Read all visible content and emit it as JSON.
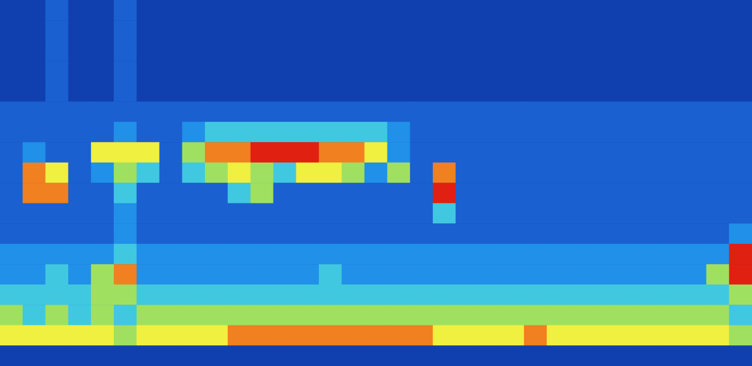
{
  "chart_data": {
    "type": "heatmap",
    "tick_labels": false,
    "grid": false,
    "color_range": [
      0,
      10
    ],
    "color_scale": [
      "#061f70",
      "#0a2a8a",
      "#1040b0",
      "#1a60d0",
      "#2090e8",
      "#40c8e0",
      "#a0e060",
      "#f0f040",
      "#f08020",
      "#e02010",
      "#c8b0b0"
    ],
    "cells": [
      [
        2,
        2,
        3,
        2,
        2,
        3,
        2,
        2,
        2,
        2,
        2,
        2,
        2,
        2,
        2,
        2,
        2,
        2,
        2,
        2,
        2,
        2,
        2,
        2,
        2,
        2,
        2,
        2,
        2,
        2,
        2,
        2,
        2
      ],
      [
        2,
        2,
        3,
        2,
        2,
        3,
        2,
        2,
        2,
        2,
        2,
        2,
        2,
        2,
        2,
        2,
        2,
        2,
        2,
        2,
        2,
        2,
        2,
        2,
        2,
        2,
        2,
        2,
        2,
        2,
        2,
        2,
        2
      ],
      [
        2,
        2,
        3,
        2,
        2,
        3,
        2,
        2,
        2,
        2,
        2,
        2,
        2,
        2,
        2,
        2,
        2,
        2,
        2,
        2,
        2,
        2,
        2,
        2,
        2,
        2,
        2,
        2,
        2,
        2,
        2,
        2,
        2
      ],
      [
        2,
        2,
        3,
        2,
        2,
        3,
        2,
        2,
        2,
        2,
        2,
        2,
        2,
        2,
        2,
        2,
        2,
        2,
        2,
        2,
        2,
        2,
        2,
        2,
        2,
        2,
        2,
        2,
        2,
        2,
        2,
        2,
        2
      ],
      [
        2,
        2,
        3,
        2,
        2,
        3,
        2,
        2,
        2,
        2,
        2,
        2,
        2,
        2,
        2,
        2,
        2,
        2,
        2,
        2,
        2,
        2,
        2,
        2,
        2,
        2,
        2,
        2,
        2,
        2,
        2,
        2,
        2
      ],
      [
        3,
        3,
        3,
        3,
        3,
        3,
        3,
        3,
        3,
        3,
        3,
        3,
        3,
        3,
        3,
        3,
        3,
        3,
        3,
        3,
        3,
        3,
        3,
        3,
        3,
        3,
        3,
        3,
        3,
        3,
        3,
        3,
        3
      ],
      [
        3,
        3,
        3,
        3,
        3,
        4,
        3,
        3,
        4,
        5,
        5,
        5,
        5,
        5,
        5,
        5,
        5,
        4,
        3,
        3,
        3,
        3,
        3,
        3,
        3,
        3,
        3,
        3,
        3,
        3,
        3,
        3,
        3
      ],
      [
        3,
        4,
        3,
        3,
        7,
        7,
        7,
        3,
        6,
        8,
        8,
        9,
        9,
        9,
        8,
        8,
        7,
        4,
        3,
        3,
        3,
        3,
        3,
        3,
        3,
        3,
        3,
        3,
        3,
        3,
        3,
        3,
        3
      ],
      [
        3,
        8,
        7,
        3,
        4,
        6,
        5,
        3,
        5,
        6,
        7,
        6,
        5,
        7,
        7,
        6,
        4,
        6,
        3,
        8,
        3,
        3,
        3,
        3,
        3,
        3,
        3,
        3,
        3,
        3,
        3,
        3,
        3
      ],
      [
        3,
        8,
        8,
        3,
        3,
        5,
        3,
        3,
        3,
        3,
        5,
        6,
        3,
        3,
        3,
        3,
        3,
        3,
        3,
        9,
        3,
        3,
        3,
        3,
        3,
        3,
        3,
        3,
        3,
        3,
        3,
        3,
        3
      ],
      [
        3,
        3,
        3,
        3,
        3,
        4,
        3,
        3,
        3,
        3,
        3,
        3,
        3,
        3,
        3,
        3,
        3,
        3,
        3,
        5,
        3,
        3,
        3,
        3,
        3,
        3,
        3,
        3,
        3,
        3,
        3,
        3,
        3
      ],
      [
        3,
        3,
        3,
        3,
        3,
        4,
        3,
        3,
        3,
        3,
        3,
        3,
        3,
        3,
        3,
        3,
        3,
        3,
        3,
        3,
        3,
        3,
        3,
        3,
        3,
        3,
        3,
        3,
        3,
        3,
        3,
        3,
        4
      ],
      [
        4,
        4,
        4,
        4,
        4,
        5,
        4,
        4,
        4,
        4,
        4,
        4,
        4,
        4,
        4,
        4,
        4,
        4,
        4,
        4,
        4,
        4,
        4,
        4,
        4,
        4,
        4,
        4,
        4,
        4,
        4,
        4,
        9
      ],
      [
        4,
        4,
        5,
        4,
        6,
        8,
        4,
        4,
        4,
        4,
        4,
        4,
        4,
        4,
        5,
        4,
        4,
        4,
        4,
        4,
        4,
        4,
        4,
        4,
        4,
        4,
        4,
        4,
        4,
        4,
        4,
        6,
        9
      ],
      [
        5,
        5,
        5,
        5,
        6,
        6,
        5,
        5,
        5,
        5,
        5,
        5,
        5,
        5,
        5,
        5,
        5,
        5,
        5,
        5,
        5,
        5,
        5,
        5,
        5,
        5,
        5,
        5,
        5,
        5,
        5,
        5,
        6
      ],
      [
        6,
        5,
        6,
        5,
        6,
        5,
        6,
        6,
        6,
        6,
        6,
        6,
        6,
        6,
        6,
        6,
        6,
        6,
        6,
        6,
        6,
        6,
        6,
        6,
        6,
        6,
        6,
        6,
        6,
        6,
        6,
        6,
        5
      ],
      [
        7,
        7,
        7,
        7,
        7,
        6,
        7,
        7,
        7,
        7,
        8,
        8,
        8,
        8,
        8,
        8,
        8,
        8,
        8,
        7,
        7,
        7,
        7,
        8,
        7,
        7,
        7,
        7,
        7,
        7,
        7,
        7,
        6
      ],
      [
        2,
        2,
        2,
        2,
        2,
        2,
        2,
        2,
        2,
        2,
        2,
        2,
        2,
        2,
        2,
        2,
        2,
        2,
        2,
        2,
        2,
        2,
        2,
        2,
        2,
        2,
        2,
        2,
        2,
        2,
        2,
        2,
        2
      ]
    ]
  }
}
